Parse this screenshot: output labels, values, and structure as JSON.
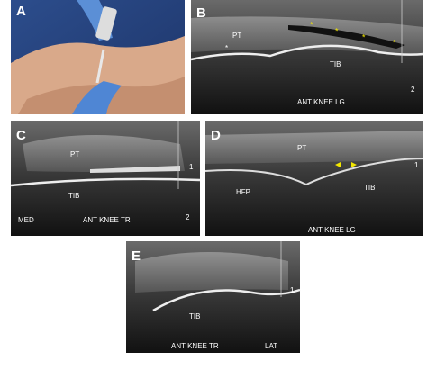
{
  "panels": [
    {
      "label": "A"
    },
    {
      "label": "B",
      "texts": [
        "PT",
        "TIB",
        "ANT KNEE LG",
        "*",
        "*",
        "*",
        "*",
        "*",
        "2"
      ]
    },
    {
      "label": "C",
      "texts": [
        "PT",
        "TIB",
        "MED",
        "ANT KNEE TR",
        "1",
        "2"
      ]
    },
    {
      "label": "D",
      "texts": [
        "PT",
        "HFP",
        "TIB",
        "ANT KNEE LG",
        "1"
      ]
    },
    {
      "label": "E",
      "texts": [
        "TIB",
        "ANT KNEE TR",
        "LAT",
        "1"
      ]
    }
  ]
}
